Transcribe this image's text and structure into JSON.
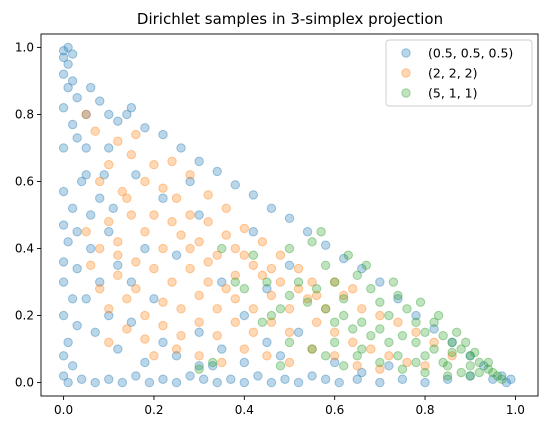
{
  "chart_data": {
    "type": "scatter",
    "title": "Dirichlet samples in 3-simplex projection",
    "xlabel": "",
    "ylabel": "",
    "xlim": [
      -0.05,
      1.05
    ],
    "ylim": [
      -0.04,
      1.04
    ],
    "xticks": [
      "0.0",
      "0.2",
      "0.4",
      "0.6",
      "0.8",
      "1.0"
    ],
    "yticks": [
      "0.0",
      "0.2",
      "0.4",
      "0.6",
      "0.8",
      "1.0"
    ],
    "grid": false,
    "legend_position": "top-right",
    "marker_alpha": 0.3,
    "series": [
      {
        "name": "(0.5, 0.5, 0.5)",
        "color": "#1f77b4",
        "points": [
          [
            0.0,
            0.99
          ],
          [
            0.01,
            1.0
          ],
          [
            0.0,
            0.97
          ],
          [
            0.01,
            0.95
          ],
          [
            0.02,
            0.98
          ],
          [
            0.0,
            0.92
          ],
          [
            0.02,
            0.9
          ],
          [
            0.01,
            0.88
          ],
          [
            0.03,
            0.85
          ],
          [
            0.0,
            0.82
          ],
          [
            0.02,
            0.77
          ],
          [
            0.05,
            0.8
          ],
          [
            0.03,
            0.73
          ],
          [
            0.0,
            0.7
          ],
          [
            0.06,
            0.88
          ],
          [
            0.08,
            0.84
          ],
          [
            0.1,
            0.8
          ],
          [
            0.12,
            0.78
          ],
          [
            0.14,
            0.8
          ],
          [
            0.1,
            0.7
          ],
          [
            0.05,
            0.62
          ],
          [
            0.0,
            0.57
          ],
          [
            0.02,
            0.52
          ],
          [
            0.0,
            0.47
          ],
          [
            0.01,
            0.42
          ],
          [
            0.0,
            0.36
          ],
          [
            0.03,
            0.34
          ],
          [
            0.0,
            0.3
          ],
          [
            0.02,
            0.25
          ],
          [
            0.0,
            0.2
          ],
          [
            0.03,
            0.17
          ],
          [
            0.01,
            0.12
          ],
          [
            0.0,
            0.08
          ],
          [
            0.02,
            0.05
          ],
          [
            0.0,
            0.02
          ],
          [
            0.01,
            0.0
          ],
          [
            0.04,
            0.01
          ],
          [
            0.07,
            0.0
          ],
          [
            0.1,
            0.01
          ],
          [
            0.13,
            0.0
          ],
          [
            0.16,
            0.02
          ],
          [
            0.19,
            0.0
          ],
          [
            0.22,
            0.01
          ],
          [
            0.25,
            0.0
          ],
          [
            0.28,
            0.02
          ],
          [
            0.31,
            0.01
          ],
          [
            0.34,
            0.0
          ],
          [
            0.37,
            0.01
          ],
          [
            0.4,
            0.0
          ],
          [
            0.43,
            0.02
          ],
          [
            0.46,
            0.0
          ],
          [
            0.49,
            0.01
          ],
          [
            0.52,
            0.0
          ],
          [
            0.55,
            0.02
          ],
          [
            0.58,
            0.01
          ],
          [
            0.61,
            0.0
          ],
          [
            0.65,
            0.01
          ],
          [
            0.7,
            0.0
          ],
          [
            0.75,
            0.01
          ],
          [
            0.8,
            0.0
          ],
          [
            0.85,
            0.01
          ],
          [
            0.9,
            0.02
          ],
          [
            0.95,
            0.01
          ],
          [
            0.98,
            0.0
          ],
          [
            0.99,
            0.01
          ],
          [
            0.97,
            0.02
          ],
          [
            0.93,
            0.05
          ],
          [
            0.9,
            0.08
          ],
          [
            0.86,
            0.12
          ],
          [
            0.82,
            0.16
          ],
          [
            0.78,
            0.2
          ],
          [
            0.74,
            0.25
          ],
          [
            0.7,
            0.3
          ],
          [
            0.66,
            0.34
          ],
          [
            0.62,
            0.37
          ],
          [
            0.58,
            0.41
          ],
          [
            0.54,
            0.45
          ],
          [
            0.5,
            0.49
          ],
          [
            0.46,
            0.52
          ],
          [
            0.42,
            0.56
          ],
          [
            0.38,
            0.59
          ],
          [
            0.34,
            0.63
          ],
          [
            0.3,
            0.66
          ],
          [
            0.26,
            0.7
          ],
          [
            0.22,
            0.74
          ],
          [
            0.18,
            0.76
          ],
          [
            0.15,
            0.82
          ],
          [
            0.08,
            0.55
          ],
          [
            0.1,
            0.45
          ],
          [
            0.06,
            0.4
          ],
          [
            0.12,
            0.35
          ],
          [
            0.08,
            0.3
          ],
          [
            0.05,
            0.25
          ],
          [
            0.1,
            0.2
          ],
          [
            0.15,
            0.18
          ],
          [
            0.07,
            0.15
          ],
          [
            0.12,
            0.1
          ],
          [
            0.18,
            0.06
          ],
          [
            0.22,
            0.12
          ],
          [
            0.25,
            0.08
          ],
          [
            0.3,
            0.05
          ],
          [
            0.35,
            0.1
          ],
          [
            0.4,
            0.06
          ],
          [
            0.45,
            0.12
          ],
          [
            0.48,
            0.08
          ],
          [
            0.52,
            0.15
          ],
          [
            0.4,
            0.2
          ],
          [
            0.3,
            0.15
          ],
          [
            0.2,
            0.25
          ],
          [
            0.15,
            0.3
          ],
          [
            0.18,
            0.4
          ],
          [
            0.25,
            0.38
          ],
          [
            0.35,
            0.3
          ],
          [
            0.45,
            0.28
          ],
          [
            0.5,
            0.35
          ],
          [
            0.42,
            0.45
          ],
          [
            0.3,
            0.5
          ],
          [
            0.22,
            0.55
          ],
          [
            0.16,
            0.62
          ],
          [
            0.28,
            0.6
          ],
          [
            0.33,
            0.05
          ],
          [
            0.6,
            0.06
          ],
          [
            0.66,
            0.03
          ],
          [
            0.72,
            0.05
          ],
          [
            0.05,
            0.7
          ],
          [
            0.04,
            0.6
          ],
          [
            0.06,
            0.5
          ],
          [
            0.03,
            0.45
          ],
          [
            0.09,
            0.62
          ],
          [
            0.11,
            0.52
          ]
        ]
      },
      {
        "name": "(2, 2, 2)",
        "color": "#ff7f0e",
        "points": [
          [
            0.05,
            0.8
          ],
          [
            0.07,
            0.75
          ],
          [
            0.12,
            0.72
          ],
          [
            0.15,
            0.68
          ],
          [
            0.1,
            0.65
          ],
          [
            0.08,
            0.6
          ],
          [
            0.13,
            0.57
          ],
          [
            0.18,
            0.6
          ],
          [
            0.2,
            0.65
          ],
          [
            0.22,
            0.58
          ],
          [
            0.25,
            0.55
          ],
          [
            0.28,
            0.5
          ],
          [
            0.15,
            0.5
          ],
          [
            0.1,
            0.48
          ],
          [
            0.05,
            0.45
          ],
          [
            0.08,
            0.4
          ],
          [
            0.12,
            0.42
          ],
          [
            0.18,
            0.45
          ],
          [
            0.22,
            0.4
          ],
          [
            0.26,
            0.44
          ],
          [
            0.3,
            0.42
          ],
          [
            0.34,
            0.38
          ],
          [
            0.38,
            0.4
          ],
          [
            0.32,
            0.48
          ],
          [
            0.36,
            0.52
          ],
          [
            0.4,
            0.46
          ],
          [
            0.44,
            0.42
          ],
          [
            0.48,
            0.38
          ],
          [
            0.42,
            0.35
          ],
          [
            0.38,
            0.32
          ],
          [
            0.32,
            0.3
          ],
          [
            0.28,
            0.34
          ],
          [
            0.24,
            0.3
          ],
          [
            0.2,
            0.34
          ],
          [
            0.16,
            0.36
          ],
          [
            0.12,
            0.32
          ],
          [
            0.08,
            0.28
          ],
          [
            0.1,
            0.22
          ],
          [
            0.14,
            0.25
          ],
          [
            0.18,
            0.2
          ],
          [
            0.22,
            0.24
          ],
          [
            0.26,
            0.22
          ],
          [
            0.3,
            0.26
          ],
          [
            0.34,
            0.22
          ],
          [
            0.38,
            0.25
          ],
          [
            0.42,
            0.22
          ],
          [
            0.46,
            0.26
          ],
          [
            0.5,
            0.22
          ],
          [
            0.54,
            0.25
          ],
          [
            0.58,
            0.22
          ],
          [
            0.62,
            0.26
          ],
          [
            0.66,
            0.22
          ],
          [
            0.7,
            0.2
          ],
          [
            0.74,
            0.18
          ],
          [
            0.78,
            0.15
          ],
          [
            0.82,
            0.12
          ],
          [
            0.86,
            0.08
          ],
          [
            0.55,
            0.3
          ],
          [
            0.52,
            0.34
          ],
          [
            0.56,
            0.18
          ],
          [
            0.6,
            0.15
          ],
          [
            0.64,
            0.12
          ],
          [
            0.68,
            0.1
          ],
          [
            0.72,
            0.08
          ],
          [
            0.76,
            0.06
          ],
          [
            0.8,
            0.05
          ],
          [
            0.5,
            0.15
          ],
          [
            0.46,
            0.18
          ],
          [
            0.42,
            0.15
          ],
          [
            0.38,
            0.18
          ],
          [
            0.34,
            0.14
          ],
          [
            0.3,
            0.18
          ],
          [
            0.26,
            0.14
          ],
          [
            0.22,
            0.17
          ],
          [
            0.18,
            0.13
          ],
          [
            0.14,
            0.16
          ],
          [
            0.2,
            0.08
          ],
          [
            0.25,
            0.1
          ],
          [
            0.3,
            0.08
          ],
          [
            0.35,
            0.06
          ],
          [
            0.4,
            0.1
          ],
          [
            0.45,
            0.08
          ],
          [
            0.5,
            0.06
          ],
          [
            0.55,
            0.1
          ],
          [
            0.6,
            0.08
          ],
          [
            0.65,
            0.05
          ],
          [
            0.7,
            0.04
          ],
          [
            0.28,
            0.62
          ],
          [
            0.24,
            0.66
          ],
          [
            0.16,
            0.74
          ],
          [
            0.32,
            0.56
          ],
          [
            0.36,
            0.44
          ],
          [
            0.4,
            0.38
          ],
          [
            0.44,
            0.32
          ],
          [
            0.48,
            0.3
          ],
          [
            0.52,
            0.28
          ],
          [
            0.56,
            0.26
          ],
          [
            0.6,
            0.3
          ],
          [
            0.64,
            0.28
          ],
          [
            0.2,
            0.5
          ],
          [
            0.14,
            0.55
          ],
          [
            0.24,
            0.48
          ],
          [
            0.28,
            0.4
          ],
          [
            0.12,
            0.38
          ],
          [
            0.16,
            0.28
          ],
          [
            0.06,
            0.35
          ],
          [
            0.1,
            0.12
          ],
          [
            0.32,
            0.36
          ],
          [
            0.46,
            0.34
          ],
          [
            0.36,
            0.28
          ]
        ]
      },
      {
        "name": "(5, 1, 1)",
        "color": "#2ca02c",
        "points": [
          [
            0.35,
            0.4
          ],
          [
            0.42,
            0.38
          ],
          [
            0.45,
            0.3
          ],
          [
            0.5,
            0.4
          ],
          [
            0.55,
            0.42
          ],
          [
            0.58,
            0.35
          ],
          [
            0.6,
            0.3
          ],
          [
            0.62,
            0.25
          ],
          [
            0.65,
            0.32
          ],
          [
            0.68,
            0.28
          ],
          [
            0.7,
            0.24
          ],
          [
            0.72,
            0.2
          ],
          [
            0.74,
            0.26
          ],
          [
            0.76,
            0.22
          ],
          [
            0.78,
            0.18
          ],
          [
            0.8,
            0.15
          ],
          [
            0.82,
            0.18
          ],
          [
            0.84,
            0.14
          ],
          [
            0.86,
            0.12
          ],
          [
            0.88,
            0.1
          ],
          [
            0.9,
            0.08
          ],
          [
            0.92,
            0.06
          ],
          [
            0.94,
            0.04
          ],
          [
            0.96,
            0.02
          ],
          [
            0.85,
            0.05
          ],
          [
            0.88,
            0.03
          ],
          [
            0.9,
            0.02
          ],
          [
            0.8,
            0.08
          ],
          [
            0.82,
            0.1
          ],
          [
            0.78,
            0.12
          ],
          [
            0.75,
            0.14
          ],
          [
            0.72,
            0.12
          ],
          [
            0.7,
            0.16
          ],
          [
            0.68,
            0.14
          ],
          [
            0.66,
            0.18
          ],
          [
            0.64,
            0.16
          ],
          [
            0.62,
            0.2
          ],
          [
            0.6,
            0.18
          ],
          [
            0.58,
            0.22
          ],
          [
            0.56,
            0.28
          ],
          [
            0.54,
            0.24
          ],
          [
            0.52,
            0.3
          ],
          [
            0.5,
            0.26
          ],
          [
            0.48,
            0.22
          ],
          [
            0.46,
            0.2
          ],
          [
            0.44,
            0.18
          ],
          [
            0.5,
            0.12
          ],
          [
            0.55,
            0.1
          ],
          [
            0.6,
            0.12
          ],
          [
            0.65,
            0.08
          ],
          [
            0.7,
            0.06
          ],
          [
            0.75,
            0.04
          ],
          [
            0.8,
            0.03
          ],
          [
            0.85,
            0.02
          ],
          [
            0.62,
            0.05
          ],
          [
            0.58,
            0.08
          ],
          [
            0.66,
            0.1
          ],
          [
            0.74,
            0.08
          ],
          [
            0.78,
            0.06
          ],
          [
            0.84,
            0.06
          ],
          [
            0.86,
            0.09
          ],
          [
            0.9,
            0.05
          ],
          [
            0.92,
            0.03
          ],
          [
            0.94,
            0.06
          ],
          [
            0.91,
            0.09
          ],
          [
            0.89,
            0.12
          ],
          [
            0.87,
            0.15
          ],
          [
            0.83,
            0.2
          ],
          [
            0.79,
            0.24
          ],
          [
            0.73,
            0.3
          ],
          [
            0.67,
            0.35
          ],
          [
            0.63,
            0.38
          ],
          [
            0.57,
            0.45
          ],
          [
            0.4,
            0.28
          ],
          [
            0.38,
            0.3
          ],
          [
            0.33,
            0.06
          ],
          [
            0.3,
            0.04
          ],
          [
            0.48,
            0.05
          ],
          [
            0.97,
            0.01
          ],
          [
            0.95,
            0.03
          ]
        ]
      }
    ]
  }
}
